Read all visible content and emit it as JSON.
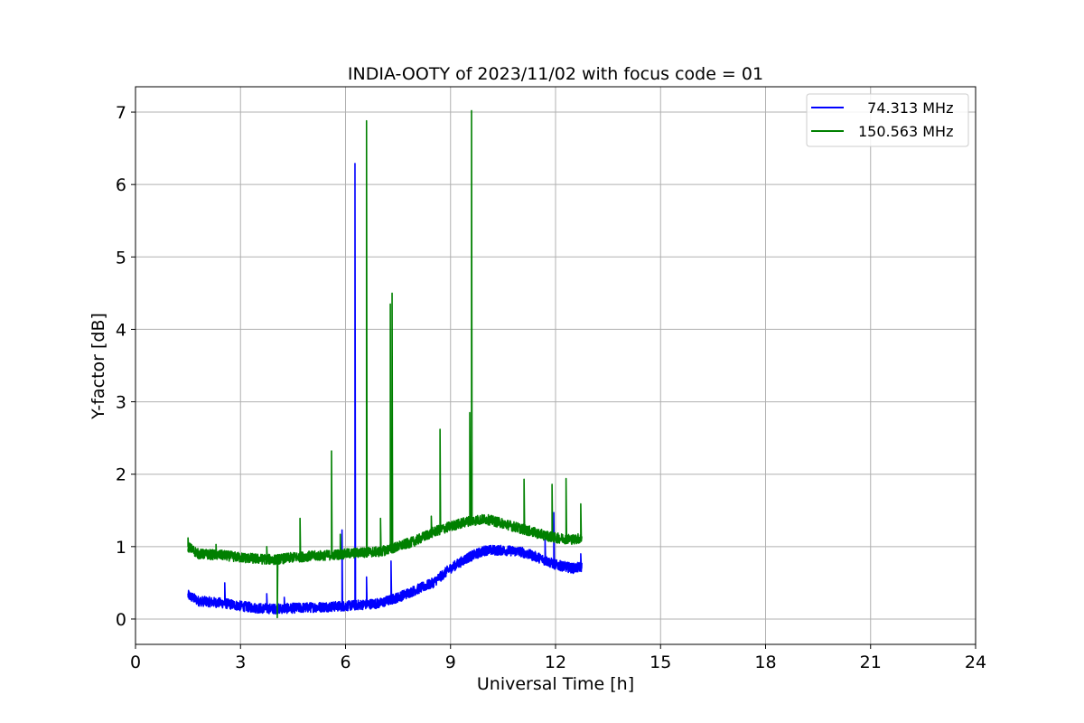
{
  "chart_data": {
    "type": "line",
    "title": "INDIA-OOTY of 2023/11/02 with focus code = 01",
    "xlabel": "Universal Time [h]",
    "ylabel": "Y-factor [dB]",
    "xlim": [
      0,
      24
    ],
    "ylim": [
      -0.35,
      7.35
    ],
    "xticks": [
      0,
      3,
      6,
      9,
      12,
      15,
      18,
      21,
      24
    ],
    "yticks": [
      0,
      1,
      2,
      3,
      4,
      5,
      6,
      7
    ],
    "grid": true,
    "legend_position": "top-right",
    "series": [
      {
        "name": "  74.313 MHz",
        "color": "#0000ff",
        "x_range": [
          1.5,
          12.75
        ],
        "baseline": [
          [
            1.5,
            0.33
          ],
          [
            1.8,
            0.25
          ],
          [
            2.5,
            0.22
          ],
          [
            3.0,
            0.18
          ],
          [
            3.5,
            0.15
          ],
          [
            4.0,
            0.14
          ],
          [
            4.5,
            0.15
          ],
          [
            5.0,
            0.16
          ],
          [
            5.5,
            0.17
          ],
          [
            6.0,
            0.18
          ],
          [
            6.5,
            0.2
          ],
          [
            7.0,
            0.22
          ],
          [
            7.5,
            0.3
          ],
          [
            8.0,
            0.4
          ],
          [
            8.5,
            0.5
          ],
          [
            9.0,
            0.7
          ],
          [
            9.5,
            0.85
          ],
          [
            10.0,
            0.95
          ],
          [
            10.5,
            0.95
          ],
          [
            11.0,
            0.93
          ],
          [
            11.5,
            0.85
          ],
          [
            12.0,
            0.75
          ],
          [
            12.5,
            0.7
          ],
          [
            12.75,
            0.72
          ]
        ],
        "noise": 0.05,
        "spikes": [
          [
            2.55,
            0.5
          ],
          [
            3.75,
            0.35
          ],
          [
            4.25,
            0.3
          ],
          [
            5.9,
            1.23
          ],
          [
            6.27,
            6.29
          ],
          [
            6.6,
            0.58
          ],
          [
            7.3,
            0.8
          ],
          [
            11.7,
            1.1
          ],
          [
            11.95,
            1.47
          ],
          [
            12.72,
            0.9
          ]
        ]
      },
      {
        "name": "150.563 MHz",
        "color": "#008000",
        "x_range": [
          1.5,
          12.75
        ],
        "baseline": [
          [
            1.5,
            1.0
          ],
          [
            1.8,
            0.9
          ],
          [
            2.5,
            0.88
          ],
          [
            3.0,
            0.85
          ],
          [
            3.5,
            0.83
          ],
          [
            4.0,
            0.82
          ],
          [
            4.5,
            0.85
          ],
          [
            5.0,
            0.87
          ],
          [
            5.5,
            0.88
          ],
          [
            6.0,
            0.9
          ],
          [
            6.5,
            0.92
          ],
          [
            7.0,
            0.93
          ],
          [
            7.5,
            1.0
          ],
          [
            8.0,
            1.08
          ],
          [
            8.5,
            1.2
          ],
          [
            9.0,
            1.28
          ],
          [
            9.5,
            1.35
          ],
          [
            10.0,
            1.38
          ],
          [
            10.5,
            1.32
          ],
          [
            11.0,
            1.25
          ],
          [
            11.5,
            1.18
          ],
          [
            12.0,
            1.12
          ],
          [
            12.5,
            1.1
          ],
          [
            12.75,
            1.12
          ]
        ],
        "noise": 0.05,
        "spikes": [
          [
            1.5,
            1.12
          ],
          [
            2.3,
            1.03
          ],
          [
            3.75,
            1.0
          ],
          [
            4.05,
            0.02
          ],
          [
            4.7,
            1.39
          ],
          [
            5.6,
            2.32
          ],
          [
            5.85,
            1.17
          ],
          [
            6.6,
            6.88
          ],
          [
            7.0,
            1.39
          ],
          [
            7.28,
            4.35
          ],
          [
            7.33,
            4.5
          ],
          [
            8.45,
            1.42
          ],
          [
            8.7,
            2.62
          ],
          [
            9.55,
            2.85
          ],
          [
            9.6,
            7.02
          ],
          [
            11.1,
            1.93
          ],
          [
            11.9,
            1.86
          ],
          [
            12.3,
            1.94
          ],
          [
            12.72,
            1.59
          ]
        ]
      }
    ]
  }
}
